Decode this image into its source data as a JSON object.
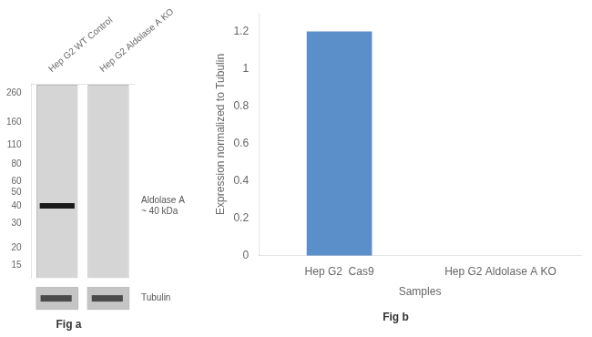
{
  "chart_data": [
    {
      "type": "blot",
      "title": "Fig a",
      "categories": [
        "Hep G2 WT Control",
        "Hep G2 Aldolase A KO"
      ],
      "values": [
        40,
        null
      ],
      "color": "#1a1a1a",
      "log": "y",
      "ylim": [
        12,
        300
      ],
      "yticks": [
        260,
        160,
        110,
        80,
        60,
        50,
        40,
        30,
        20,
        15
      ],
      "annotations": [
        {
          "text": "Aldolase A\n~ 40 kDa",
          "value": 40
        },
        {
          "text": "Tubulin"
        }
      ],
      "grid": false
    },
    {
      "type": "bar",
      "title": "Fig b",
      "categories": [
        "Hep G2  Cas9",
        "Hep G2 Aldolase A KO"
      ],
      "values": [
        1.2,
        0.0
      ],
      "color": "#5b8fc9",
      "xlabel": "Samples",
      "ylabel": "Expression normalized to Tubulin",
      "ylim": [
        0,
        1.3
      ],
      "yticks": [
        0,
        0.2,
        0.4,
        0.6,
        0.8,
        1,
        1.2
      ],
      "grid": false
    }
  ]
}
